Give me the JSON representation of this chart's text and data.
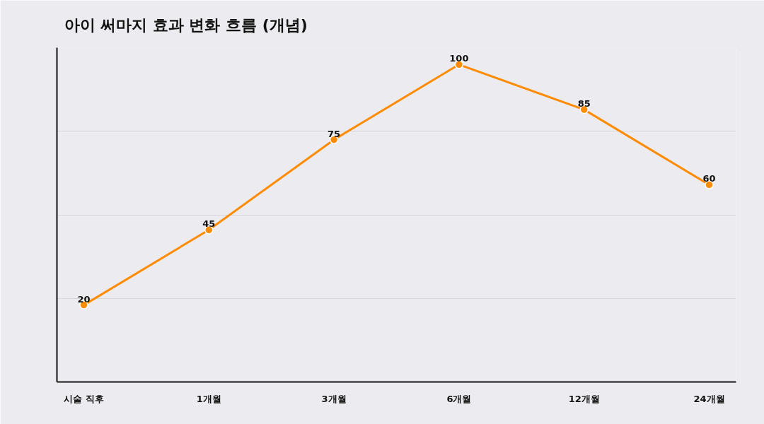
{
  "chart_data": {
    "type": "line",
    "title": "아이 써마지 효과 변화 흐름 (개념)",
    "categories": [
      "시술 직후",
      "1개월",
      "3개월",
      "6개월",
      "12개월",
      "24개월"
    ],
    "series": [
      {
        "color": "#ff8c00",
        "values": [
          20,
          45,
          75,
          100,
          85,
          60
        ]
      }
    ],
    "ylim": [
      -5.6,
      105.6
    ],
    "yticks": [
      {
        "value": 22.2,
        "label": null
      },
      {
        "value": 50,
        "label": null
      },
      {
        "value": 77.8,
        "label": null
      },
      {
        "value": 105.6,
        "label": null
      }
    ],
    "tick_labels": "x",
    "grid": "y",
    "marker": "circle",
    "line_style": "solid",
    "data_labels": true
  }
}
